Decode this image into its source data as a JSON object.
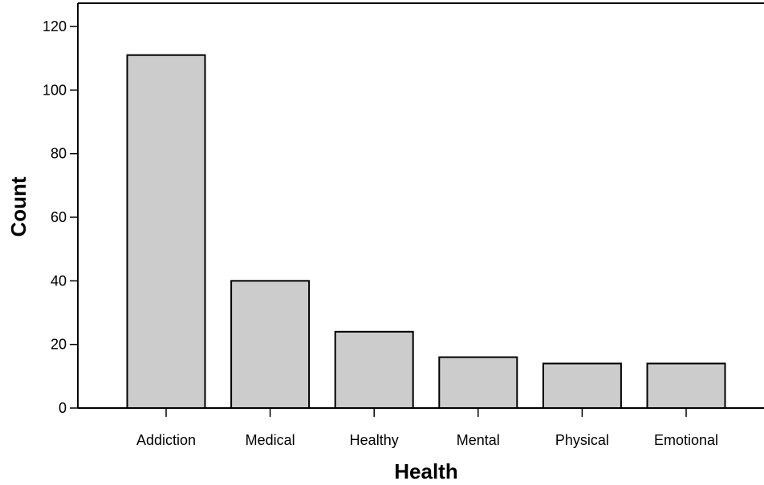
{
  "chart_data": {
    "type": "bar",
    "title": "",
    "xlabel": "Health",
    "ylabel": "Count",
    "categories": [
      "Addiction",
      "Medical",
      "Healthy",
      "Mental",
      "Physical",
      "Emotional"
    ],
    "values": [
      111,
      40,
      24,
      16,
      14,
      14
    ],
    "ylim": [
      0,
      120
    ],
    "yticks": [
      0,
      20,
      40,
      60,
      80,
      100,
      120
    ],
    "bar_color": "#cccccc",
    "grid": false,
    "legend": "none"
  }
}
